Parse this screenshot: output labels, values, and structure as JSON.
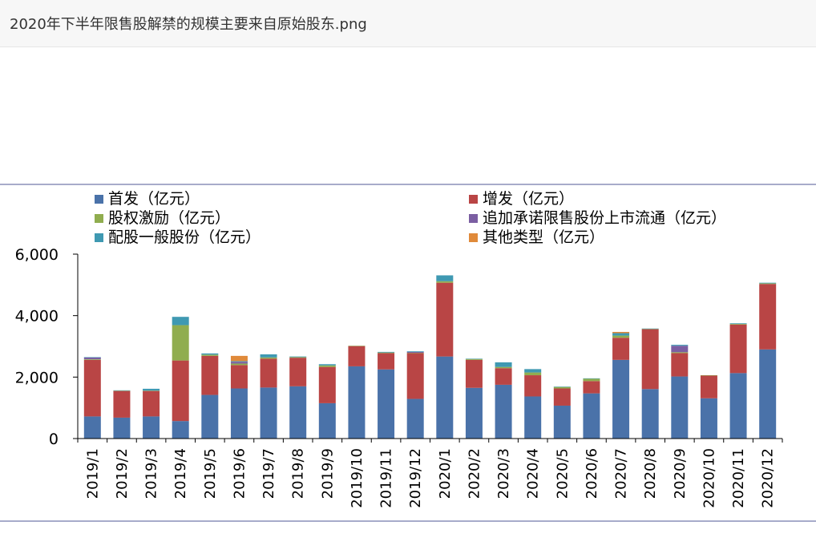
{
  "window": {
    "title": "2020年下半年限售股解禁的规模主要来自原始股东.png"
  },
  "chart_data": {
    "type": "bar",
    "stacked": true,
    "categories": [
      "2019/1",
      "2019/2",
      "2019/3",
      "2019/4",
      "2019/5",
      "2019/6",
      "2019/7",
      "2019/8",
      "2019/9",
      "2019/10",
      "2019/11",
      "2019/12",
      "2020/1",
      "2020/2",
      "2020/3",
      "2020/4",
      "2020/5",
      "2020/6",
      "2020/7",
      "2020/8",
      "2020/9",
      "2020/10",
      "2020/11",
      "2020/12"
    ],
    "ylim": [
      0,
      6000
    ],
    "yticks": [
      0,
      2000,
      4000,
      6000
    ],
    "ytick_labels": [
      "0",
      "2,000",
      "4,000",
      "6,000"
    ],
    "legend_position": "top",
    "grid": false,
    "series": [
      {
        "name": "首发（亿元）",
        "color": "#4a72a9",
        "values": [
          720,
          680,
          720,
          570,
          1420,
          1630,
          1660,
          1700,
          1150,
          2350,
          2250,
          1290,
          2670,
          1650,
          1750,
          1370,
          1070,
          1470,
          2560,
          1610,
          2020,
          1310,
          2130,
          2900
        ]
      },
      {
        "name": "增发（亿元）",
        "color": "#b94545",
        "values": [
          1840,
          870,
          830,
          1970,
          1270,
          760,
          940,
          930,
          1180,
          660,
          530,
          1490,
          2400,
          910,
          540,
          690,
          560,
          400,
          720,
          1950,
          760,
          740,
          1580,
          2130
        ]
      },
      {
        "name": "股权激励（亿元）",
        "color": "#90ad4f",
        "values": [
          20,
          10,
          10,
          1150,
          40,
          50,
          40,
          20,
          50,
          10,
          20,
          10,
          50,
          30,
          40,
          90,
          50,
          80,
          70,
          10,
          30,
          10,
          20,
          20
        ]
      },
      {
        "name": "追加承诺限售股份上市流通（亿元）",
        "color": "#7b5ea2",
        "values": [
          60,
          0,
          0,
          0,
          0,
          60,
          0,
          0,
          0,
          0,
          0,
          30,
          0,
          0,
          0,
          0,
          0,
          0,
          0,
          0,
          210,
          0,
          0,
          0
        ]
      },
      {
        "name": "配股一般股份（亿元）",
        "color": "#3f99b2",
        "values": [
          10,
          10,
          60,
          270,
          40,
          20,
          100,
          20,
          40,
          0,
          20,
          20,
          190,
          10,
          150,
          110,
          10,
          10,
          80,
          10,
          30,
          0,
          20,
          20
        ]
      },
      {
        "name": "其他类型（亿元）",
        "color": "#e08a3a",
        "values": [
          0,
          0,
          0,
          0,
          0,
          170,
          0,
          0,
          0,
          0,
          0,
          0,
          0,
          0,
          0,
          0,
          0,
          0,
          40,
          0,
          0,
          0,
          0,
          0
        ]
      }
    ]
  }
}
